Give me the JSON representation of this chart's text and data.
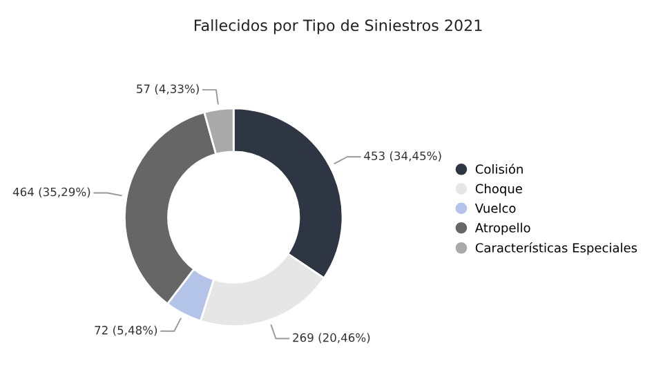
{
  "chart_data": {
    "type": "donut",
    "title": "Fallecidos por Tipo de Siniestros 2021",
    "categories": [
      "Colisión",
      "Choque",
      "Vuelco",
      "Atropello",
      "Características Especiales"
    ],
    "values": [
      453,
      269,
      72,
      464,
      57
    ],
    "colors": [
      "#2e3644",
      "#e6e6e6",
      "#b4c4e8",
      "#666666",
      "#a9a9a9"
    ],
    "value_labels": [
      "453 (34,45%)",
      "269 (20,46%)",
      "72 (5,48%)",
      "464 (35,29%)",
      "57 (4,33%)"
    ],
    "legend": "right"
  }
}
